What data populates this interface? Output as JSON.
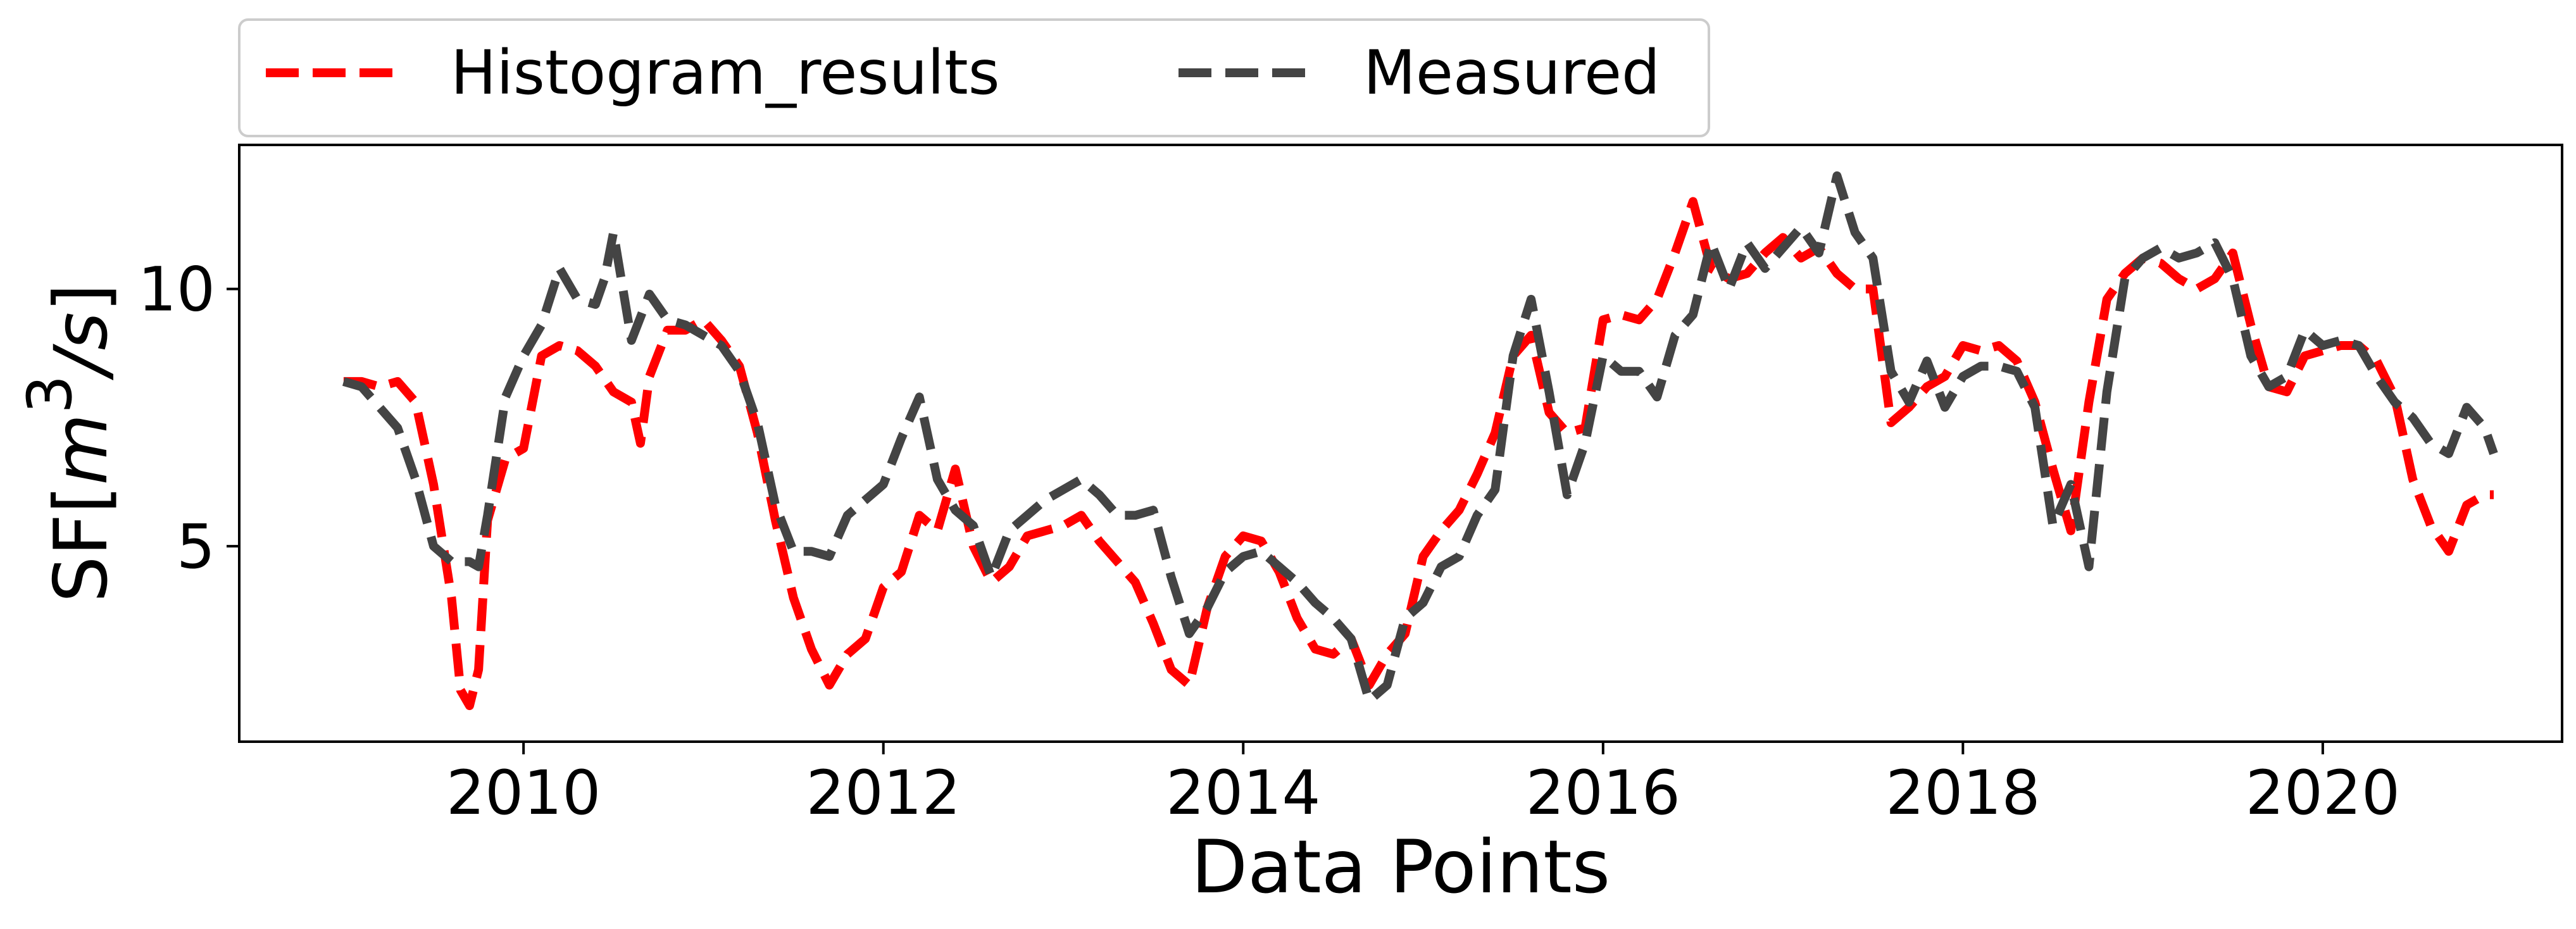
{
  "chart_data": {
    "type": "line",
    "title": "",
    "xlabel": "Data Points",
    "ylabel_parts": {
      "prefix": "SF[",
      "m": "m",
      "exp": "3",
      "slash_s": "/s",
      "suffix": "]"
    },
    "x_tick_labels": [
      "2010",
      "2012",
      "2014",
      "2016",
      "2018",
      "2020"
    ],
    "x_ticks": [
      2010,
      2012,
      2014,
      2016,
      2018,
      2020
    ],
    "y_tick_labels": [
      "5",
      "10"
    ],
    "y_ticks": [
      5,
      10
    ],
    "xlim": [
      2008.42,
      2021.33
    ],
    "ylim": [
      1.2,
      12.8
    ],
    "grid": false,
    "legend_position": "top-left, outside plot, 2 columns",
    "series": [
      {
        "name": "Histogram_results",
        "color": "#ff0000",
        "x": [
          2009.0,
          2009.1,
          2009.2,
          2009.3,
          2009.4,
          2009.5,
          2009.6,
          2009.65,
          2009.7,
          2009.75,
          2009.8,
          2009.9,
          2010.0,
          2010.1,
          2010.2,
          2010.3,
          2010.4,
          2010.5,
          2010.6,
          2010.65,
          2010.7,
          2010.8,
          2010.9,
          2011.0,
          2011.1,
          2011.2,
          2011.3,
          2011.4,
          2011.5,
          2011.6,
          2011.7,
          2011.8,
          2011.9,
          2012.0,
          2012.1,
          2012.2,
          2012.3,
          2012.4,
          2012.5,
          2012.6,
          2012.7,
          2012.8,
          2012.9,
          2013.0,
          2013.1,
          2013.2,
          2013.3,
          2013.4,
          2013.5,
          2013.6,
          2013.7,
          2013.8,
          2013.9,
          2014.0,
          2014.1,
          2014.2,
          2014.3,
          2014.4,
          2014.5,
          2014.6,
          2014.7,
          2014.8,
          2014.9,
          2015.0,
          2015.1,
          2015.2,
          2015.3,
          2015.4,
          2015.5,
          2015.6,
          2015.7,
          2015.8,
          2015.9,
          2016.0,
          2016.1,
          2016.2,
          2016.3,
          2016.4,
          2016.5,
          2016.6,
          2016.7,
          2016.8,
          2016.9,
          2017.0,
          2017.1,
          2017.2,
          2017.3,
          2017.4,
          2017.5,
          2017.6,
          2017.7,
          2017.8,
          2017.9,
          2018.0,
          2018.1,
          2018.2,
          2018.3,
          2018.4,
          2018.5,
          2018.6,
          2018.7,
          2018.8,
          2018.9,
          2019.0,
          2019.1,
          2019.2,
          2019.3,
          2019.4,
          2019.5,
          2019.6,
          2019.7,
          2019.8,
          2019.9,
          2020.0,
          2020.1,
          2020.2,
          2020.3,
          2020.4,
          2020.5,
          2020.6,
          2020.7,
          2020.8,
          2020.9,
          2020.95
        ],
        "values": [
          8.2,
          8.2,
          8.1,
          8.2,
          7.8,
          6.2,
          4.0,
          2.2,
          1.9,
          2.6,
          5.5,
          6.7,
          6.9,
          8.7,
          8.9,
          8.8,
          8.5,
          8.0,
          7.8,
          7.0,
          8.3,
          9.2,
          9.2,
          9.4,
          9.0,
          8.5,
          7.2,
          5.5,
          4.0,
          3.0,
          2.3,
          2.9,
          3.2,
          4.2,
          4.5,
          5.6,
          5.3,
          6.5,
          5.0,
          4.3,
          4.6,
          5.2,
          5.3,
          5.4,
          5.6,
          5.1,
          4.7,
          4.3,
          3.5,
          2.6,
          2.3,
          3.8,
          4.8,
          5.2,
          5.1,
          4.5,
          3.6,
          3.0,
          2.9,
          3.2,
          2.3,
          2.9,
          3.3,
          4.8,
          5.3,
          5.7,
          6.4,
          7.2,
          8.7,
          9.1,
          7.6,
          7.2,
          7.3,
          9.4,
          9.5,
          9.4,
          9.8,
          10.7,
          11.7,
          10.4,
          10.2,
          10.3,
          10.7,
          11.0,
          10.6,
          10.8,
          10.3,
          10.0,
          10.0,
          7.4,
          7.7,
          8.1,
          8.3,
          8.9,
          8.8,
          8.9,
          8.6,
          7.8,
          6.5,
          5.3,
          7.8,
          9.8,
          10.3,
          10.6,
          10.5,
          10.2,
          10.0,
          10.2,
          10.7,
          9.3,
          8.1,
          8.0,
          8.7,
          8.8,
          8.9,
          8.9,
          8.6,
          7.9,
          6.3,
          5.4,
          4.9,
          5.8,
          6.0,
          6.0
        ]
      },
      {
        "name": "Measured",
        "color": "#444444",
        "x": [
          2009.0,
          2009.1,
          2009.2,
          2009.3,
          2009.4,
          2009.5,
          2009.6,
          2009.7,
          2009.75,
          2009.8,
          2009.9,
          2010.0,
          2010.1,
          2010.2,
          2010.3,
          2010.4,
          2010.45,
          2010.5,
          2010.6,
          2010.7,
          2010.8,
          2010.9,
          2011.0,
          2011.1,
          2011.2,
          2011.3,
          2011.4,
          2011.5,
          2011.6,
          2011.7,
          2011.8,
          2011.9,
          2012.0,
          2012.1,
          2012.2,
          2012.3,
          2012.4,
          2012.5,
          2012.6,
          2012.7,
          2012.8,
          2012.9,
          2013.0,
          2013.1,
          2013.2,
          2013.3,
          2013.4,
          2013.5,
          2013.6,
          2013.7,
          2013.8,
          2013.9,
          2014.0,
          2014.1,
          2014.2,
          2014.3,
          2014.4,
          2014.5,
          2014.6,
          2014.7,
          2014.8,
          2014.9,
          2015.0,
          2015.1,
          2015.2,
          2015.3,
          2015.4,
          2015.5,
          2015.6,
          2015.7,
          2015.8,
          2015.9,
          2016.0,
          2016.1,
          2016.2,
          2016.3,
          2016.4,
          2016.5,
          2016.6,
          2016.7,
          2016.8,
          2016.9,
          2017.0,
          2017.1,
          2017.2,
          2017.3,
          2017.4,
          2017.5,
          2017.6,
          2017.7,
          2017.8,
          2017.9,
          2018.0,
          2018.1,
          2018.2,
          2018.3,
          2018.4,
          2018.5,
          2018.6,
          2018.7,
          2018.8,
          2018.9,
          2019.0,
          2019.1,
          2019.2,
          2019.3,
          2019.4,
          2019.5,
          2019.6,
          2019.7,
          2019.8,
          2019.9,
          2020.0,
          2020.1,
          2020.2,
          2020.3,
          2020.4,
          2020.5,
          2020.6,
          2020.7,
          2020.8,
          2020.9,
          2020.95
        ],
        "values": [
          8.2,
          8.1,
          7.7,
          7.3,
          6.3,
          5.0,
          4.7,
          4.7,
          4.6,
          5.6,
          7.9,
          8.7,
          9.3,
          10.4,
          9.8,
          9.7,
          10.2,
          11.1,
          9.0,
          9.9,
          9.4,
          9.3,
          9.1,
          8.9,
          8.4,
          7.4,
          5.8,
          4.9,
          4.9,
          4.8,
          5.6,
          5.9,
          6.2,
          7.1,
          7.9,
          6.3,
          5.7,
          5.4,
          4.4,
          5.3,
          5.6,
          5.9,
          6.1,
          6.3,
          6.0,
          5.6,
          5.6,
          5.7,
          4.4,
          3.3,
          3.8,
          4.5,
          4.8,
          4.9,
          4.6,
          4.3,
          3.9,
          3.6,
          3.2,
          2.0,
          2.3,
          3.6,
          3.9,
          4.6,
          4.8,
          5.6,
          6.1,
          8.7,
          9.8,
          8.0,
          6.0,
          7.0,
          8.7,
          8.4,
          8.4,
          7.9,
          9.1,
          9.5,
          10.9,
          10.0,
          10.9,
          10.4,
          10.8,
          11.2,
          10.7,
          12.2,
          11.1,
          10.6,
          8.4,
          7.8,
          8.6,
          7.7,
          8.3,
          8.5,
          8.5,
          8.4,
          7.7,
          5.4,
          6.2,
          4.6,
          8.0,
          10.2,
          10.6,
          10.8,
          10.6,
          10.7,
          10.9,
          10.2,
          8.7,
          8.1,
          8.3,
          9.2,
          8.9,
          9.0,
          8.9,
          8.3,
          7.8,
          7.5,
          7.0,
          6.8,
          7.7,
          7.3,
          6.8
        ]
      }
    ]
  }
}
